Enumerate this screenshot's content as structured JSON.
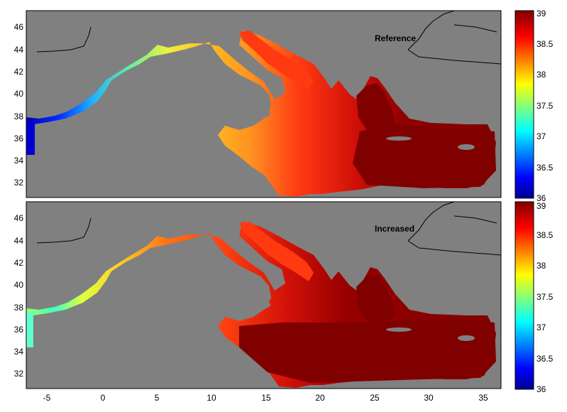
{
  "panels": [
    {
      "label": "Reference"
    },
    {
      "label": "Increased"
    }
  ],
  "x_ticks": [
    "-5",
    "0",
    "5",
    "10",
    "15",
    "20",
    "25",
    "30",
    "35"
  ],
  "y_ticks": [
    "46",
    "44",
    "42",
    "40",
    "38",
    "36",
    "34",
    "32"
  ],
  "colorbar_ticks": [
    "39",
    "38.5",
    "38",
    "37.5",
    "37",
    "36.5",
    "36"
  ],
  "colors": {
    "land": "#808080",
    "coast": "#000000",
    "colormap": [
      "#00008f",
      "#0000ff",
      "#00ffff",
      "#ffff00",
      "#ff0000",
      "#800000"
    ]
  }
}
